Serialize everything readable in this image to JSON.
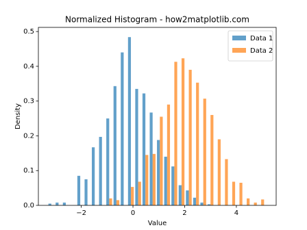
{
  "chart_data": {
    "type": "histogram",
    "title": "Normalized Histogram - how2matplotlib.com",
    "xlabel": "Value",
    "ylabel": "Density",
    "bins": [
      -3.3,
      -3.02,
      -2.74,
      -2.46,
      -2.18,
      -1.9,
      -1.62,
      -1.34,
      -1.06,
      -0.78,
      -0.5,
      -0.22,
      0.06,
      0.34,
      0.62,
      0.9,
      1.18,
      1.46,
      1.74,
      2.02,
      2.3,
      2.58,
      2.86,
      3.14,
      3.42,
      3.7,
      3.98,
      4.26,
      4.54,
      4.82,
      5.1
    ],
    "series": [
      {
        "name": "Data 1",
        "color": "#1f77b4",
        "values": [
          0.005,
          0.008,
          0.008,
          0,
          0.085,
          0.075,
          0.167,
          0.197,
          0.25,
          0.343,
          0.44,
          0.484,
          0.335,
          0.322,
          0.267,
          0.188,
          0.14,
          0.112,
          0.058,
          0.043,
          0.022,
          0.008,
          0.003,
          0,
          0,
          0,
          0,
          0,
          0,
          0
        ]
      },
      {
        "name": "Data 2",
        "color": "#ff7f0e",
        "values": [
          0,
          0,
          0,
          0,
          0,
          0,
          0,
          0,
          0.02,
          0.015,
          0,
          0.053,
          0.068,
          0.145,
          0.148,
          0.255,
          0.29,
          0.413,
          0.423,
          0.39,
          0.353,
          0.307,
          0.26,
          0.19,
          0.133,
          0.068,
          0.065,
          0.02,
          0.008,
          0.017
        ]
      }
    ],
    "xlim": [
      -3.66,
      5.54
    ],
    "ylim": [
      0,
      0.512
    ],
    "xticks": [
      {
        "value": -2,
        "label": "−2"
      },
      0,
      2,
      4
    ],
    "yticks": [
      {
        "value": 0,
        "label": "0.0"
      },
      0.1,
      0.2,
      0.3,
      0.4,
      0.5
    ],
    "alpha": 0.7,
    "legend": "upper right"
  }
}
